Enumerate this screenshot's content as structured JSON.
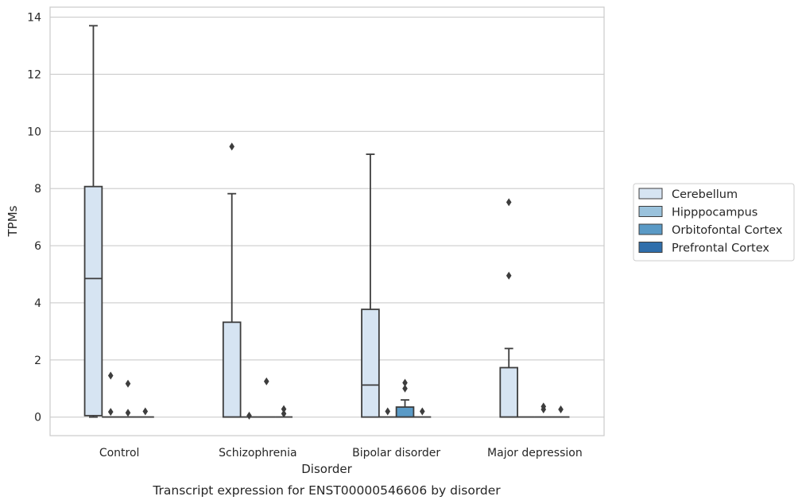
{
  "chart_data": {
    "type": "box",
    "title": "",
    "caption": "Transcript expression for ENST00000546606 by disorder",
    "xlabel": "Disorder",
    "ylabel": "TPMs",
    "ylim": [
      -0.65,
      14.35
    ],
    "yticks": [
      0,
      2,
      4,
      6,
      8,
      10,
      12,
      14
    ],
    "grid": "horizontal",
    "legend_position": "right",
    "categories": [
      "Control",
      "Schizophrenia",
      "Bipolar disorder",
      "Major depression"
    ],
    "series": [
      {
        "name": "Cerebellum",
        "color": "#d6e4f2",
        "boxes": [
          {
            "whislo": 0.0,
            "q1": 0.05,
            "med": 4.85,
            "q3": 8.07,
            "whishi": 13.7,
            "fliers": []
          },
          {
            "whislo": 0.0,
            "q1": 0.0,
            "med": 0.0,
            "q3": 3.32,
            "whishi": 7.82,
            "fliers": [
              9.47
            ]
          },
          {
            "whislo": 0.0,
            "q1": 0.0,
            "med": 1.12,
            "q3": 3.77,
            "whishi": 9.2,
            "fliers": []
          },
          {
            "whislo": 0.0,
            "q1": 0.0,
            "med": 0.0,
            "q3": 1.73,
            "whishi": 2.4,
            "fliers": [
              4.95,
              7.52
            ]
          }
        ]
      },
      {
        "name": "Hipppocampus",
        "color": "#9ac2dc",
        "boxes": [
          {
            "whislo": 0.0,
            "q1": 0.0,
            "med": 0.0,
            "q3": 0.0,
            "whishi": 0.0,
            "fliers": [
              0.18,
              1.45
            ]
          },
          {
            "whislo": 0.0,
            "q1": 0.0,
            "med": 0.0,
            "q3": 0.0,
            "whishi": 0.0,
            "fliers": [
              0.05
            ]
          },
          {
            "whislo": 0.0,
            "q1": 0.0,
            "med": 0.0,
            "q3": 0.0,
            "whishi": 0.0,
            "fliers": [
              0.2
            ]
          },
          {
            "whislo": 0.0,
            "q1": 0.0,
            "med": 0.0,
            "q3": 0.0,
            "whishi": 0.0,
            "fliers": []
          }
        ]
      },
      {
        "name": "Orbitofontal Cortex",
        "color": "#5a9ac6",
        "boxes": [
          {
            "whislo": 0.0,
            "q1": 0.0,
            "med": 0.0,
            "q3": 0.0,
            "whishi": 0.0,
            "fliers": [
              0.15,
              1.17
            ]
          },
          {
            "whislo": 0.0,
            "q1": 0.0,
            "med": 0.0,
            "q3": 0.0,
            "whishi": 0.0,
            "fliers": [
              1.25
            ]
          },
          {
            "whislo": 0.0,
            "q1": 0.0,
            "med": 0.0,
            "q3": 0.35,
            "whishi": 0.6,
            "fliers": [
              1.0,
              1.2
            ]
          },
          {
            "whislo": 0.0,
            "q1": 0.0,
            "med": 0.0,
            "q3": 0.0,
            "whishi": 0.0,
            "fliers": [
              0.27,
              0.37
            ]
          }
        ]
      },
      {
        "name": "Prefrontal Cortex",
        "color": "#2f6eab",
        "boxes": [
          {
            "whislo": 0.0,
            "q1": 0.0,
            "med": 0.0,
            "q3": 0.0,
            "whishi": 0.0,
            "fliers": [
              0.2
            ]
          },
          {
            "whislo": 0.0,
            "q1": 0.0,
            "med": 0.0,
            "q3": 0.0,
            "whishi": 0.0,
            "fliers": [
              0.12,
              0.28
            ]
          },
          {
            "whislo": 0.0,
            "q1": 0.0,
            "med": 0.0,
            "q3": 0.0,
            "whishi": 0.0,
            "fliers": [
              0.2
            ]
          },
          {
            "whislo": 0.0,
            "q1": 0.0,
            "med": 0.0,
            "q3": 0.0,
            "whishi": 0.0,
            "fliers": [
              0.27
            ]
          }
        ]
      }
    ]
  }
}
